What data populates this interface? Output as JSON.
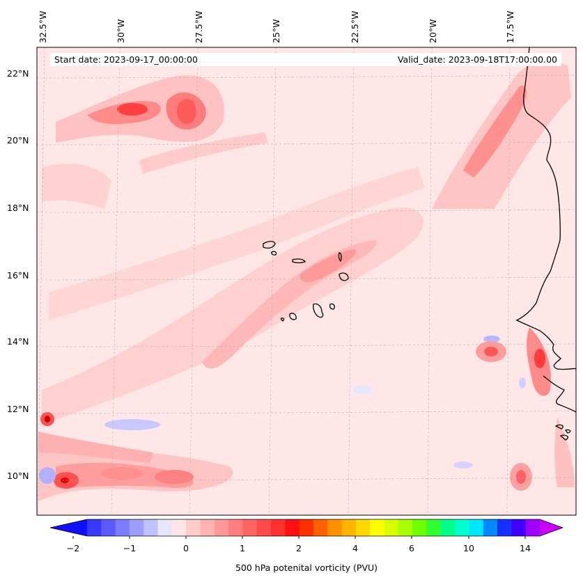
{
  "map": {
    "title_left": "Start date: 2023-09-17_00:00:00",
    "title_right": "Valid_date: 2023-09-18T17:00:00.00",
    "lon_ticks": [
      "32.5°W",
      "30°W",
      "27.5°W",
      "25°W",
      "22.5°W",
      "20°W",
      "17.5°W"
    ],
    "lat_ticks": [
      "22°N",
      "20°N",
      "18°N",
      "16°N",
      "14°N",
      "12°N",
      "10°N"
    ],
    "background_color": "#ffe7e7",
    "gridlines": true
  },
  "colorbar": {
    "label": "500 hPa potenital vorticity (PVU)",
    "tick_labels": [
      "−2",
      "−1",
      "0",
      "1",
      "2",
      "4",
      "6",
      "10",
      "14"
    ],
    "colors": [
      "#1010ff",
      "#3838ff",
      "#5a5aff",
      "#7c7cff",
      "#9e9eff",
      "#c0c0ff",
      "#e6e6ff",
      "#ffe5e5",
      "#ffcccc",
      "#ffb2b2",
      "#ff9898",
      "#ff7e7e",
      "#ff6464",
      "#ff4a4a",
      "#ff3030",
      "#ff1010",
      "#ff3000",
      "#ff6000",
      "#ff9000",
      "#ffb400",
      "#ffd800",
      "#ffff00",
      "#d8ff00",
      "#a8ff00",
      "#70ff00",
      "#30ff30",
      "#00ff88",
      "#00ffcc",
      "#00e6ff",
      "#0088ff",
      "#1830ff",
      "#4000ff",
      "#a000ff",
      "#cc00ff"
    ],
    "extend": "both"
  }
}
